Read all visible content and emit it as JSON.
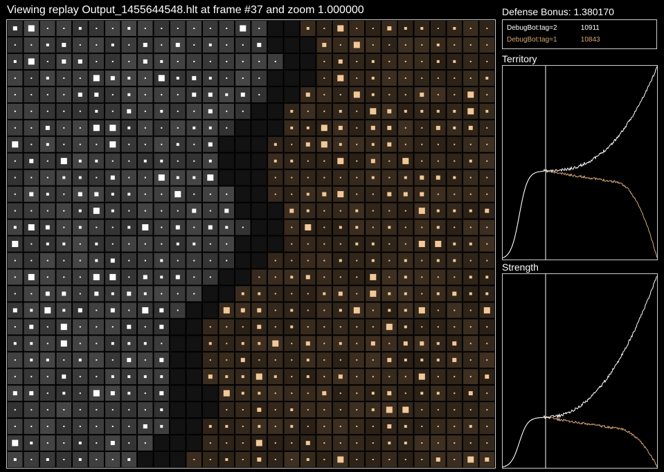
{
  "header": {
    "title": "Viewing replay Output_1455644548.hlt at frame #37 and zoom 1.000000"
  },
  "defense": {
    "label": "Defense Bonus: 1.380170"
  },
  "players": [
    {
      "name": "DebugBot:tag=2",
      "score": "10911",
      "color": "#ffffff"
    },
    {
      "name": "DebugBot:tag=1",
      "score": "10843",
      "color": "#d9a873"
    }
  ],
  "graphs": {
    "territory": {
      "title": "Territory"
    },
    "strength": {
      "title": "Strength"
    }
  },
  "board": {
    "grid_columns": 30,
    "grid_rows": 27,
    "owner_colors": {
      "neutral": "#3c3c3c",
      "player2": "#ffffff",
      "player1": "#f2c89a"
    }
  }
}
